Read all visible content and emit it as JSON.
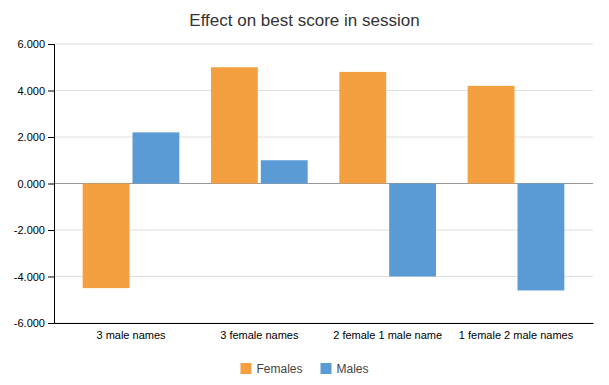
{
  "chart_data": {
    "type": "bar",
    "title": "Effect on best score in session",
    "categories": [
      "3 male names",
      "3 female names",
      "2 female 1 male name",
      "1 female 2 male names"
    ],
    "series": [
      {
        "name": "Females",
        "color": "#F4A040",
        "values": [
          -4.5,
          5.0,
          4.8,
          4.2
        ]
      },
      {
        "name": "Males",
        "color": "#5B9BD5",
        "values": [
          2.2,
          1.0,
          -4.0,
          -4.6
        ]
      }
    ],
    "ylim": [
      -6.0,
      6.0
    ],
    "yticks": [
      {
        "value": -6.0,
        "label": "-6.000"
      },
      {
        "value": -4.0,
        "label": "-4.000"
      },
      {
        "value": -2.0,
        "label": "-2.000"
      },
      {
        "value": 0.0,
        "label": "0.000"
      },
      {
        "value": 2.0,
        "label": "2.000"
      },
      {
        "value": 4.0,
        "label": "4.000"
      },
      {
        "value": 6.0,
        "label": "6.000"
      }
    ],
    "grid": true,
    "legend": "bottom"
  }
}
